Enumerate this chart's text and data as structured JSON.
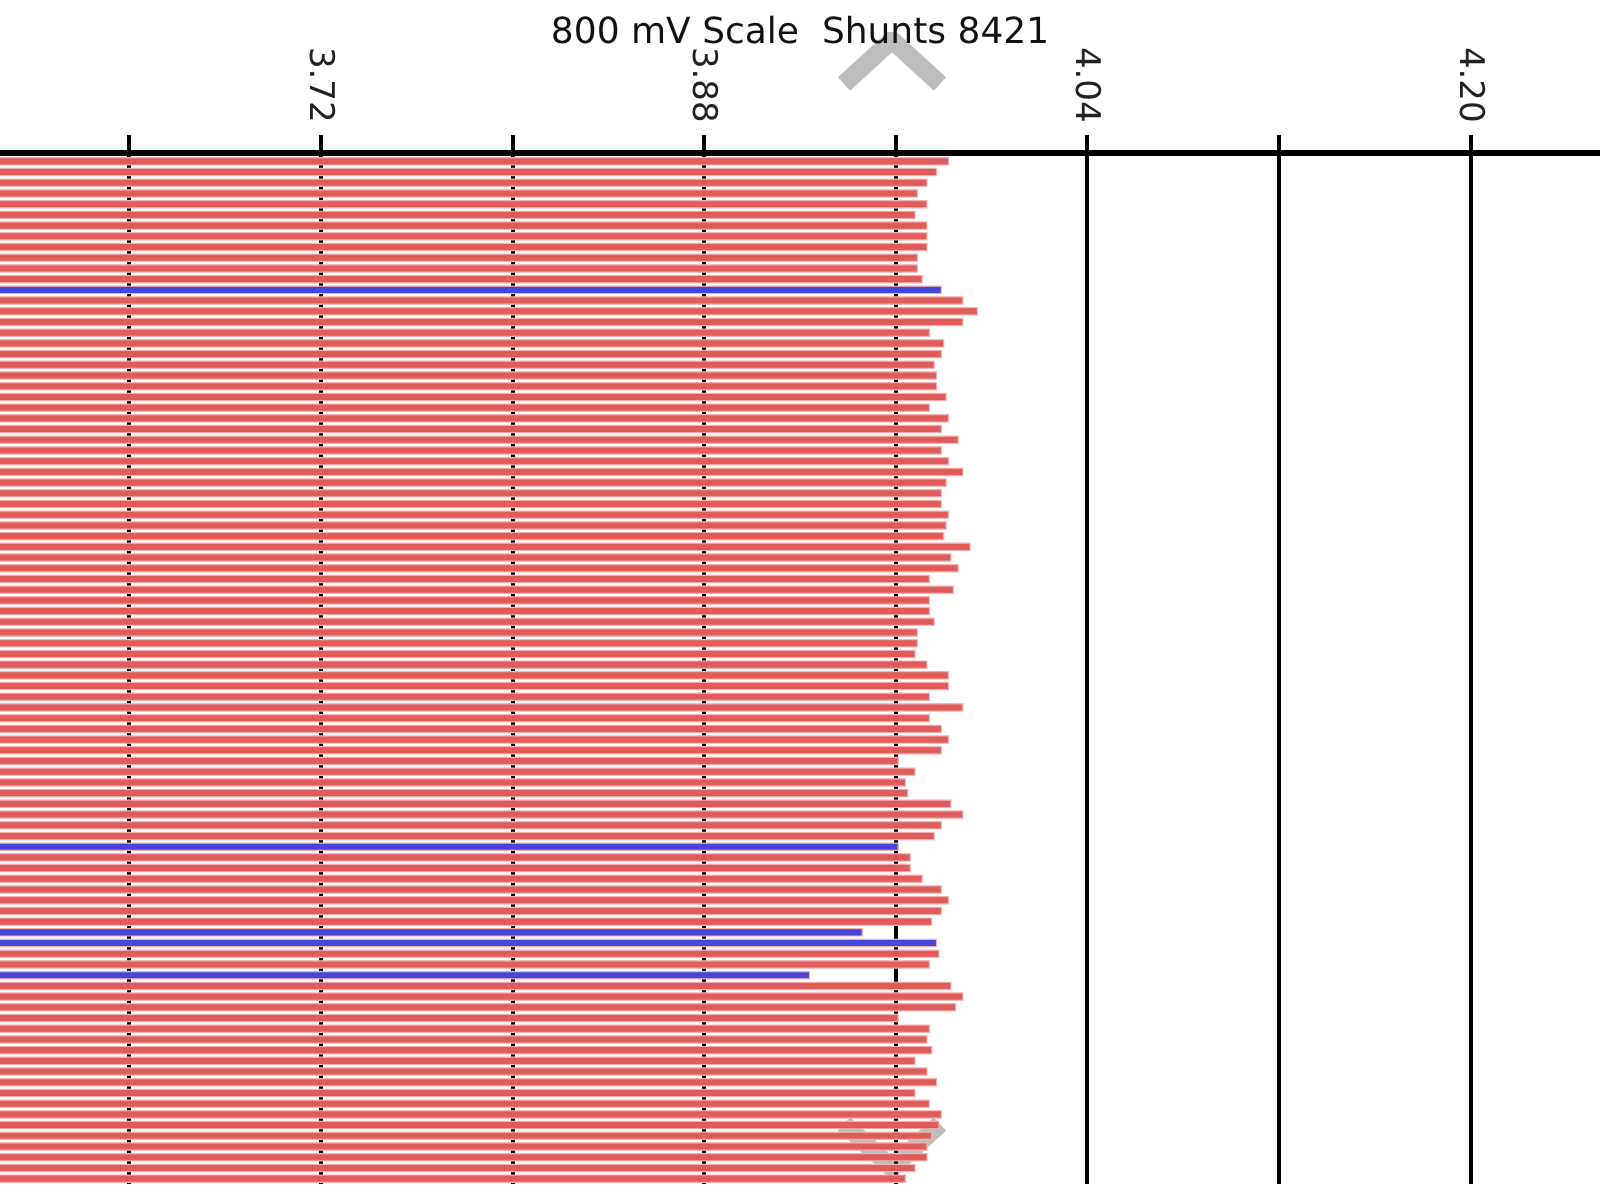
{
  "chart_data": {
    "type": "bar",
    "orientation": "horizontal",
    "title": "800 mV Scale  Shunts 8421",
    "categories": [
      null,
      null,
      null,
      null,
      null,
      null,
      null,
      null,
      null,
      null,
      null,
      null,
      null,
      null,
      null,
      null,
      null,
      null,
      null,
      null,
      null,
      null,
      null,
      null,
      null,
      null,
      null,
      null,
      null,
      null,
      null,
      null,
      null,
      null,
      null,
      null,
      null,
      null,
      null,
      null,
      null,
      null,
      null,
      null,
      null,
      null,
      null,
      null,
      null,
      null,
      null,
      null,
      null,
      null,
      null,
      null,
      null,
      null,
      null,
      null,
      null,
      null,
      null,
      null,
      null,
      null,
      null,
      null,
      null,
      null,
      null,
      null,
      null,
      null,
      null,
      null,
      null,
      null,
      null,
      null,
      null,
      null,
      null,
      null,
      null,
      null,
      null,
      null,
      null,
      null,
      null,
      null,
      null,
      null,
      null,
      null
    ],
    "values": [
      3.982,
      3.977,
      3.973,
      3.969,
      3.973,
      3.968,
      3.973,
      3.973,
      3.973,
      3.969,
      3.969,
      3.971,
      3.979,
      3.988,
      3.994,
      3.988,
      3.974,
      3.98,
      3.979,
      3.976,
      3.977,
      3.977,
      3.981,
      3.974,
      3.982,
      3.979,
      3.986,
      3.979,
      3.982,
      3.988,
      3.981,
      3.979,
      3.979,
      3.982,
      3.981,
      3.98,
      3.991,
      3.983,
      3.986,
      3.974,
      3.984,
      3.974,
      3.974,
      3.976,
      3.969,
      3.969,
      3.968,
      3.973,
      3.982,
      3.982,
      3.974,
      3.988,
      3.974,
      3.979,
      3.982,
      3.979,
      3.961,
      3.968,
      3.964,
      3.965,
      3.983,
      3.988,
      3.979,
      3.976,
      3.961,
      3.966,
      3.966,
      3.971,
      3.979,
      3.982,
      3.979,
      3.975,
      3.946,
      3.977,
      3.978,
      3.974,
      3.924,
      3.983,
      3.988,
      3.985,
      3.961,
      3.974,
      3.973,
      3.975,
      3.968,
      3.973,
      3.977,
      3.968,
      3.974,
      3.979,
      3.978,
      3.975,
      3.973,
      3.973,
      3.968,
      3.964
    ],
    "colors": [
      "#e05c5c",
      "#e05c5c",
      "#e05c5c",
      "#e05c5c",
      "#e05c5c",
      "#e05c5c",
      "#e05c5c",
      "#e05c5c",
      "#e05c5c",
      "#e05c5c",
      "#e05c5c",
      "#e05c5c",
      "#4646d8",
      "#e05c5c",
      "#e05c5c",
      "#e05c5c",
      "#e05c5c",
      "#e05c5c",
      "#e05c5c",
      "#e05c5c",
      "#e05c5c",
      "#e05c5c",
      "#e05c5c",
      "#e05c5c",
      "#e05c5c",
      "#e05c5c",
      "#e05c5c",
      "#e05c5c",
      "#e05c5c",
      "#e05c5c",
      "#e05c5c",
      "#e05c5c",
      "#e05c5c",
      "#e05c5c",
      "#e05c5c",
      "#e05c5c",
      "#e05c5c",
      "#e05c5c",
      "#e05c5c",
      "#e05c5c",
      "#e05c5c",
      "#e05c5c",
      "#e05c5c",
      "#e05c5c",
      "#e05c5c",
      "#e05c5c",
      "#e05c5c",
      "#e05c5c",
      "#e05c5c",
      "#e05c5c",
      "#e05c5c",
      "#e05c5c",
      "#e05c5c",
      "#e05c5c",
      "#e05c5c",
      "#e05c5c",
      "#e05c5c",
      "#e05c5c",
      "#e05c5c",
      "#e05c5c",
      "#e05c5c",
      "#e05c5c",
      "#e05c5c",
      "#e05c5c",
      "#4646d8",
      "#e05c5c",
      "#e05c5c",
      "#e05c5c",
      "#e05c5c",
      "#e05c5c",
      "#e05c5c",
      "#e05c5c",
      "#4646d8",
      "#4646d8",
      "#e05c5c",
      "#e05c5c",
      "#4646d8",
      "#e05c5c",
      "#e05c5c",
      "#e05c5c",
      "#e05c5c",
      "#e05c5c",
      "#e05c5c",
      "#e05c5c",
      "#e05c5c",
      "#e05c5c",
      "#e05c5c",
      "#e05c5c",
      "#e05c5c",
      "#e05c5c",
      "#e05c5c",
      "#e05c5c",
      "#e05c5c",
      "#e05c5c",
      "#e05c5c",
      "#e05c5c"
    ],
    "xlim": [
      3.586,
      4.254
    ],
    "xticks": [
      {
        "value": 3.64,
        "label": null
      },
      3.72,
      {
        "value": 3.8,
        "label": null
      },
      3.88,
      {
        "value": 3.96,
        "label": null
      },
      4.04,
      {
        "value": 4.12,
        "label": null
      },
      {
        "value": 4.2,
        "label": "4.20"
      }
    ],
    "grid": "x",
    "tick_labels": "x"
  }
}
